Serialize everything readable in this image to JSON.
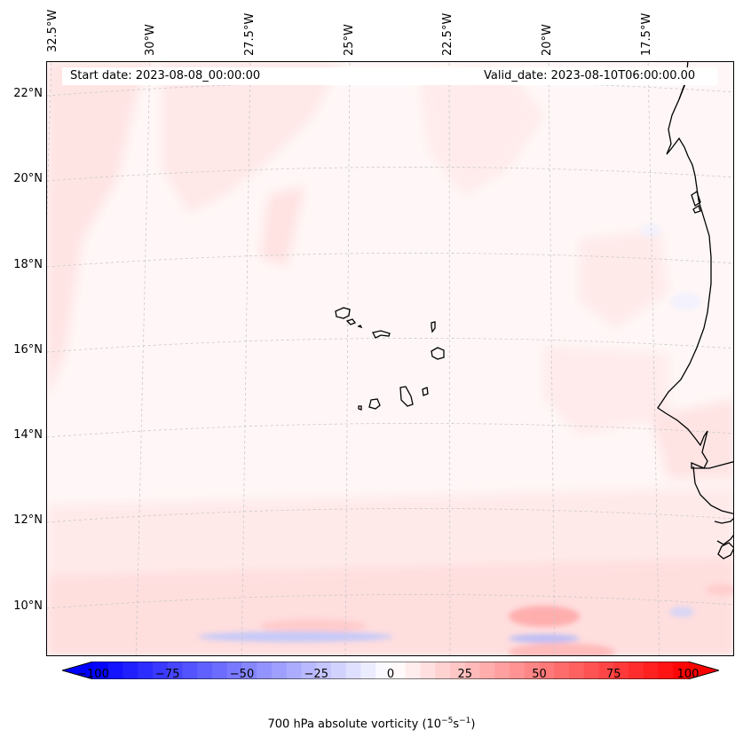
{
  "header": {
    "start_date": "Start date: 2023-08-08_00:00:00",
    "valid_date": "Valid_date: 2023-08-10T06:00:00.00"
  },
  "map": {
    "longitude_labels": [
      "32.5°W",
      "30°W",
      "27.5°W",
      "25°W",
      "22.5°W",
      "20°W",
      "17.5°W"
    ],
    "latitude_labels": [
      "22°N",
      "20°N",
      "18°N",
      "16°N",
      "14°N",
      "12°N",
      "10°N"
    ],
    "features": [
      "coastline-west-africa",
      "cape-verde-islands"
    ]
  },
  "colorbar": {
    "min": -100,
    "max": 100,
    "levels": 41,
    "extend": "both",
    "colormap": "bwr",
    "tick_values": [
      -100,
      -75,
      -50,
      -25,
      0,
      25,
      50,
      75,
      100
    ],
    "tick_labels": [
      "−100",
      "−75",
      "−50",
      "−25",
      "0",
      "25",
      "50",
      "75",
      "100"
    ],
    "label_prefix": "700 hPa absolute vorticity (10",
    "label_exp1": "−5",
    "label_mid": "s",
    "label_exp2": "−1",
    "label_suffix": ")"
  },
  "colors": {
    "negative": "#0000ff",
    "positive": "#ff0000",
    "neutral": "#ffffff",
    "background_field": "#fff7f7"
  }
}
